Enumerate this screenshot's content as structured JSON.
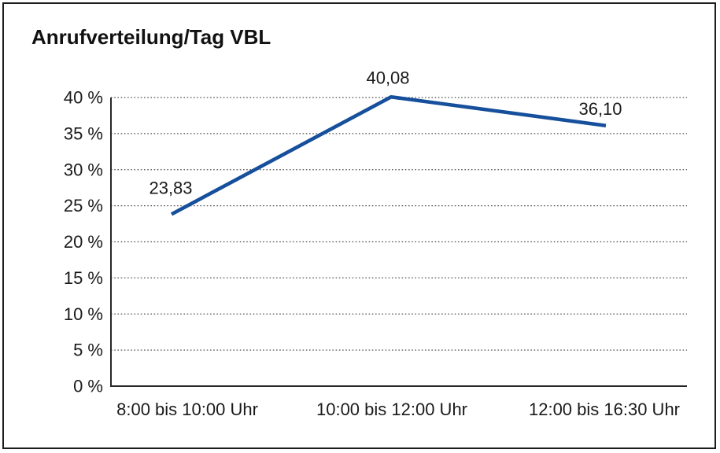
{
  "chart": {
    "title": "Anrufverteilung/Tag VBL"
  },
  "chart_data": {
    "type": "line",
    "title": "Anrufverteilung/Tag VBL",
    "categories": [
      "8:00 bis 10:00 Uhr",
      "10:00 bis 12:00 Uhr",
      "12:00 bis 16:30 Uhr"
    ],
    "values": [
      23.83,
      40.08,
      36.1
    ],
    "value_labels": [
      "23,83",
      "40,08",
      "36,10"
    ],
    "y_tick_labels": [
      "0 %",
      "5 %",
      "10 %",
      "15 %",
      "20 %",
      "25 %",
      "30 %",
      "35 %",
      "40 %"
    ],
    "y_ticks": [
      0,
      5,
      10,
      15,
      20,
      25,
      30,
      35,
      40
    ],
    "xlabel": "",
    "ylabel": "",
    "ylim": [
      0,
      40
    ],
    "y_step": 5,
    "grid": "horizontal-dotted",
    "legend": "none",
    "colors": {
      "line": "#164f9b",
      "axis": "#262626",
      "grid": "#4d4d4d",
      "text": "#1a1a1a",
      "background": "#ffffff",
      "frame_border": "#1c1c1c"
    }
  }
}
